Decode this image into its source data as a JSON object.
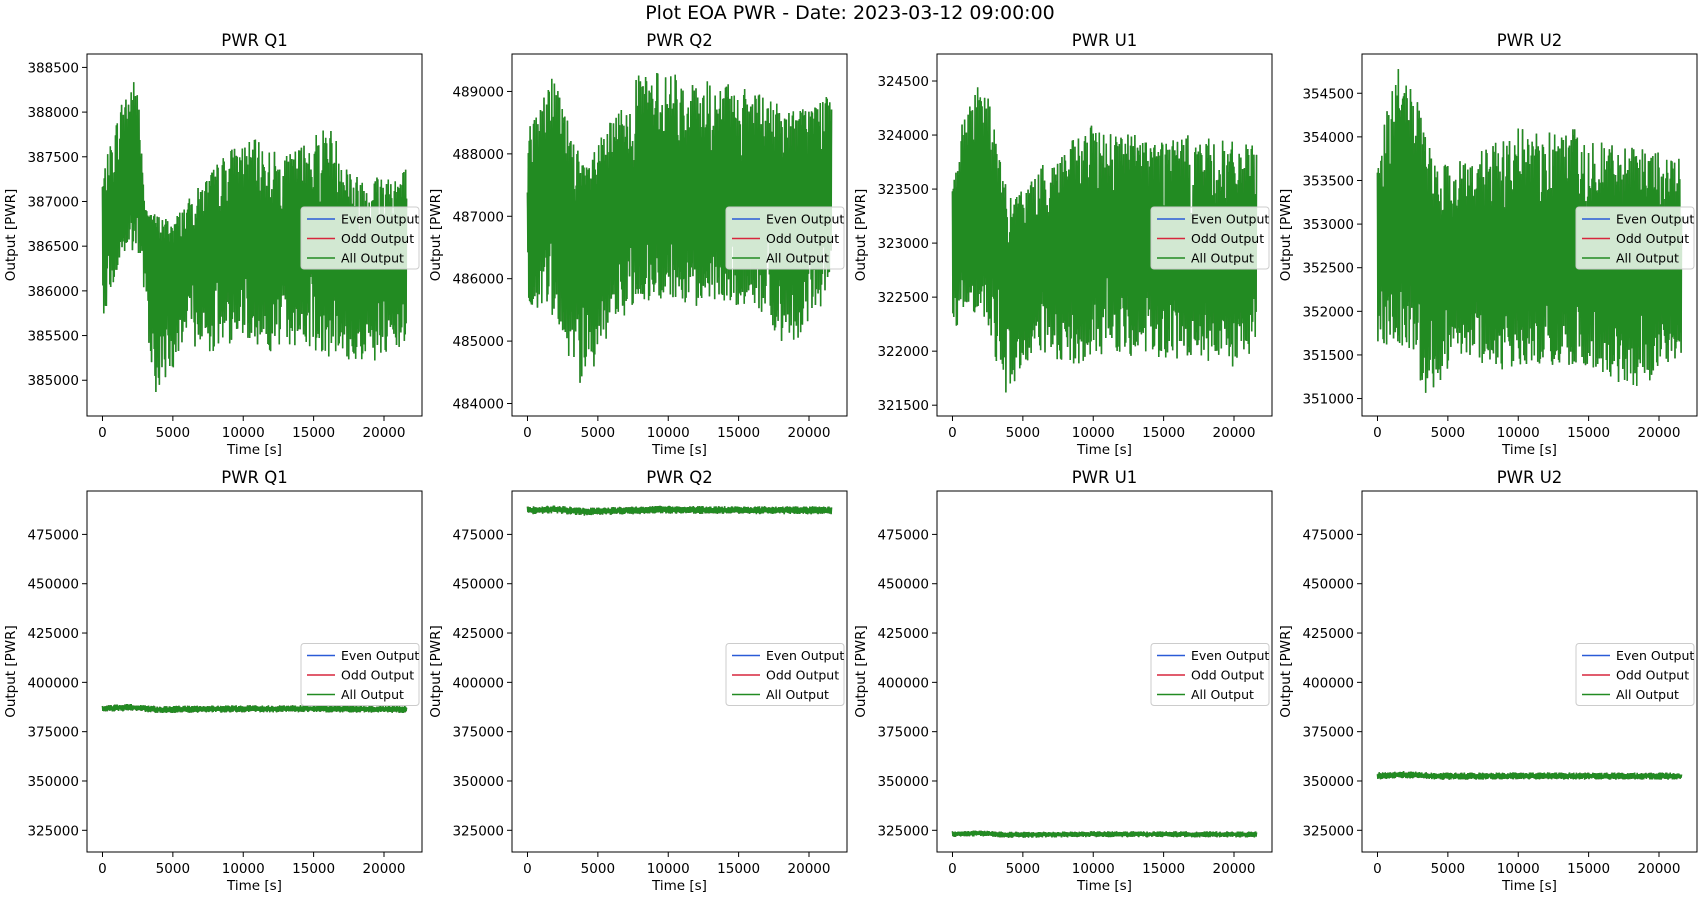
{
  "figure": {
    "suptitle": "Plot EOA PWR - Date: 2023-03-12 09:00:00"
  },
  "colors": {
    "even": "#2a5bd7",
    "odd": "#d7263d",
    "all": "#228b22",
    "legend_bg": "#ffffff",
    "axes": "#000000"
  },
  "chart_data": [
    {
      "type": "line",
      "title": "PWR Q1",
      "xlabel": "Time [s]",
      "ylabel": "Output [PWR]",
      "xlim": [
        -1100,
        22700
      ],
      "ylim": [
        384600,
        388650
      ],
      "xticks": [
        0,
        5000,
        10000,
        15000,
        20000
      ],
      "yticks": [
        385000,
        385500,
        386000,
        386500,
        387000,
        387500,
        388000,
        388500
      ],
      "legend": [
        "Even Output",
        "Odd Output",
        "All Output"
      ],
      "legend_loc": "center-right",
      "signal": {
        "x_end": 21600,
        "center": [
          [
            0,
            386600
          ],
          [
            2500,
            387300
          ],
          [
            4000,
            386300
          ],
          [
            6000,
            386400
          ],
          [
            8000,
            386500
          ],
          [
            10000,
            386700
          ],
          [
            12000,
            386400
          ],
          [
            14000,
            386500
          ],
          [
            16000,
            386600
          ],
          [
            18000,
            386300
          ],
          [
            21600,
            386300
          ]
        ],
        "upper": [
          [
            0,
            387300
          ],
          [
            1600,
            388300
          ],
          [
            2500,
            388400
          ],
          [
            3000,
            386900
          ],
          [
            5000,
            386800
          ],
          [
            7000,
            387200
          ],
          [
            9000,
            387600
          ],
          [
            11000,
            387700
          ],
          [
            13000,
            387500
          ],
          [
            16000,
            387900
          ],
          [
            18000,
            387300
          ],
          [
            21600,
            387400
          ]
        ],
        "lower": [
          [
            0,
            385700
          ],
          [
            1500,
            386400
          ],
          [
            2500,
            386400
          ],
          [
            3800,
            384800
          ],
          [
            6000,
            385400
          ],
          [
            8000,
            385300
          ],
          [
            10000,
            385500
          ],
          [
            12000,
            385300
          ],
          [
            14000,
            385400
          ],
          [
            17000,
            385200
          ],
          [
            20000,
            385200
          ],
          [
            21600,
            385400
          ]
        ]
      }
    },
    {
      "type": "line",
      "title": "PWR Q2",
      "xlabel": "Time [s]",
      "ylabel": "Output [PWR]",
      "xlim": [
        -1100,
        22700
      ],
      "ylim": [
        483800,
        489600
      ],
      "xticks": [
        0,
        5000,
        10000,
        15000,
        20000
      ],
      "yticks": [
        484000,
        485000,
        486000,
        487000,
        488000,
        489000
      ],
      "legend": [
        "Even Output",
        "Odd Output",
        "All Output"
      ],
      "legend_loc": "center-right",
      "signal": {
        "x_end": 21600,
        "center": [
          [
            0,
            487000
          ],
          [
            2000,
            487400
          ],
          [
            4000,
            486600
          ],
          [
            8000,
            487300
          ],
          [
            12000,
            487100
          ],
          [
            16000,
            487300
          ],
          [
            21600,
            487400
          ]
        ],
        "upper": [
          [
            0,
            488400
          ],
          [
            1800,
            489300
          ],
          [
            4000,
            487800
          ],
          [
            8000,
            489300
          ],
          [
            10000,
            489300
          ],
          [
            13000,
            489200
          ],
          [
            16000,
            489000
          ],
          [
            19000,
            488700
          ],
          [
            21600,
            489000
          ]
        ],
        "lower": [
          [
            0,
            485600
          ],
          [
            2000,
            485300
          ],
          [
            3700,
            484100
          ],
          [
            6000,
            485200
          ],
          [
            8000,
            485600
          ],
          [
            10000,
            485700
          ],
          [
            13000,
            485500
          ],
          [
            16000,
            485600
          ],
          [
            18500,
            484800
          ],
          [
            21600,
            485800
          ]
        ]
      }
    },
    {
      "type": "line",
      "title": "PWR U1",
      "xlabel": "Time [s]",
      "ylabel": "Output [PWR]",
      "xlim": [
        -1100,
        22700
      ],
      "ylim": [
        321400,
        324750
      ],
      "xticks": [
        0,
        5000,
        10000,
        15000,
        20000
      ],
      "yticks": [
        321500,
        322000,
        322500,
        323000,
        323500,
        324000,
        324500
      ],
      "legend": [
        "Even Output",
        "Odd Output",
        "All Output"
      ],
      "legend_loc": "center-right",
      "signal": {
        "x_end": 21600,
        "center": [
          [
            0,
            323000
          ],
          [
            2000,
            323400
          ],
          [
            4000,
            322700
          ],
          [
            8000,
            322900
          ],
          [
            12000,
            323000
          ],
          [
            16000,
            322900
          ],
          [
            21600,
            322900
          ]
        ],
        "upper": [
          [
            0,
            323700
          ],
          [
            1500,
            324600
          ],
          [
            2500,
            324400
          ],
          [
            4000,
            323400
          ],
          [
            7000,
            323800
          ],
          [
            10000,
            324100
          ],
          [
            14000,
            324000
          ],
          [
            17000,
            324000
          ],
          [
            21600,
            323900
          ]
        ],
        "lower": [
          [
            0,
            322200
          ],
          [
            2000,
            322400
          ],
          [
            3800,
            321600
          ],
          [
            6000,
            322000
          ],
          [
            8500,
            321800
          ],
          [
            11000,
            322000
          ],
          [
            14000,
            321900
          ],
          [
            17000,
            321900
          ],
          [
            20500,
            321800
          ],
          [
            21600,
            322100
          ]
        ]
      }
    },
    {
      "type": "line",
      "title": "PWR U2",
      "xlabel": "Time [s]",
      "ylabel": "Output [PWR]",
      "xlim": [
        -1100,
        22700
      ],
      "ylim": [
        350800,
        354950
      ],
      "xticks": [
        0,
        5000,
        10000,
        15000,
        20000
      ],
      "yticks": [
        351000,
        351500,
        352000,
        352500,
        353000,
        353500,
        354000,
        354500
      ],
      "legend": [
        "Even Output",
        "Odd Output",
        "All Output"
      ],
      "legend_loc": "center-right",
      "signal": {
        "x_end": 21600,
        "center": [
          [
            0,
            352600
          ],
          [
            2000,
            353200
          ],
          [
            4000,
            352400
          ],
          [
            8000,
            352600
          ],
          [
            12000,
            352500
          ],
          [
            16000,
            352500
          ],
          [
            21600,
            352500
          ]
        ],
        "upper": [
          [
            0,
            353900
          ],
          [
            1500,
            354800
          ],
          [
            2500,
            354600
          ],
          [
            4000,
            353700
          ],
          [
            7000,
            353800
          ],
          [
            10000,
            354100
          ],
          [
            14000,
            354100
          ],
          [
            17000,
            353900
          ],
          [
            21600,
            353800
          ]
        ],
        "lower": [
          [
            0,
            351600
          ],
          [
            2000,
            351600
          ],
          [
            3600,
            351000
          ],
          [
            6000,
            351500
          ],
          [
            9000,
            351300
          ],
          [
            12000,
            351400
          ],
          [
            15000,
            351300
          ],
          [
            18500,
            351100
          ],
          [
            21600,
            351500
          ]
        ]
      }
    },
    {
      "type": "line",
      "title": "PWR Q1",
      "xlabel": "Time [s]",
      "ylabel": "Output [PWR]",
      "xlim": [
        -1100,
        22700
      ],
      "ylim": [
        314000,
        497000
      ],
      "xticks": [
        0,
        5000,
        10000,
        15000,
        20000
      ],
      "yticks": [
        325000,
        350000,
        375000,
        400000,
        425000,
        450000,
        475000
      ],
      "legend": [
        "Even Output",
        "Odd Output",
        "All Output"
      ],
      "legend_loc": "center-right",
      "signal": {
        "x_end": 21600,
        "center": [
          [
            0,
            386600
          ],
          [
            2000,
            387300
          ],
          [
            4000,
            386200
          ],
          [
            10000,
            386600
          ],
          [
            15000,
            386600
          ],
          [
            21600,
            386300
          ]
        ],
        "band": 1800
      }
    },
    {
      "type": "line",
      "title": "PWR Q2",
      "xlabel": "Time [s]",
      "ylabel": "Output [PWR]",
      "xlim": [
        -1100,
        22700
      ],
      "ylim": [
        314000,
        497000
      ],
      "xticks": [
        0,
        5000,
        10000,
        15000,
        20000
      ],
      "yticks": [
        325000,
        350000,
        375000,
        400000,
        425000,
        450000,
        475000
      ],
      "legend": [
        "Even Output",
        "Odd Output",
        "All Output"
      ],
      "legend_loc": "center-right",
      "signal": {
        "x_end": 21600,
        "center": [
          [
            0,
            487200
          ],
          [
            2000,
            487700
          ],
          [
            4000,
            486500
          ],
          [
            9000,
            487500
          ],
          [
            15000,
            487300
          ],
          [
            21600,
            487200
          ]
        ],
        "band": 2000
      }
    },
    {
      "type": "line",
      "title": "PWR U1",
      "xlabel": "Time [s]",
      "ylabel": "Output [PWR]",
      "xlim": [
        -1100,
        22700
      ],
      "ylim": [
        314000,
        497000
      ],
      "xticks": [
        0,
        5000,
        10000,
        15000,
        20000
      ],
      "yticks": [
        325000,
        350000,
        375000,
        400000,
        425000,
        450000,
        475000
      ],
      "legend": [
        "Even Output",
        "Odd Output",
        "All Output"
      ],
      "legend_loc": "center-right",
      "signal": {
        "x_end": 21600,
        "center": [
          [
            0,
            323000
          ],
          [
            2000,
            323500
          ],
          [
            4000,
            322700
          ],
          [
            10000,
            323000
          ],
          [
            15000,
            323000
          ],
          [
            21600,
            322900
          ]
        ],
        "band": 1500
      }
    },
    {
      "type": "line",
      "title": "PWR U2",
      "xlabel": "Time [s]",
      "ylabel": "Output [PWR]",
      "xlim": [
        -1100,
        22700
      ],
      "ylim": [
        314000,
        497000
      ],
      "xticks": [
        0,
        5000,
        10000,
        15000,
        20000
      ],
      "yticks": [
        325000,
        350000,
        375000,
        400000,
        425000,
        450000,
        475000
      ],
      "legend": [
        "Even Output",
        "Odd Output",
        "All Output"
      ],
      "legend_loc": "center-right",
      "signal": {
        "x_end": 21600,
        "center": [
          [
            0,
            352600
          ],
          [
            2000,
            353200
          ],
          [
            4000,
            352400
          ],
          [
            10000,
            352600
          ],
          [
            15000,
            352500
          ],
          [
            21600,
            352500
          ]
        ],
        "band": 1800
      }
    }
  ]
}
